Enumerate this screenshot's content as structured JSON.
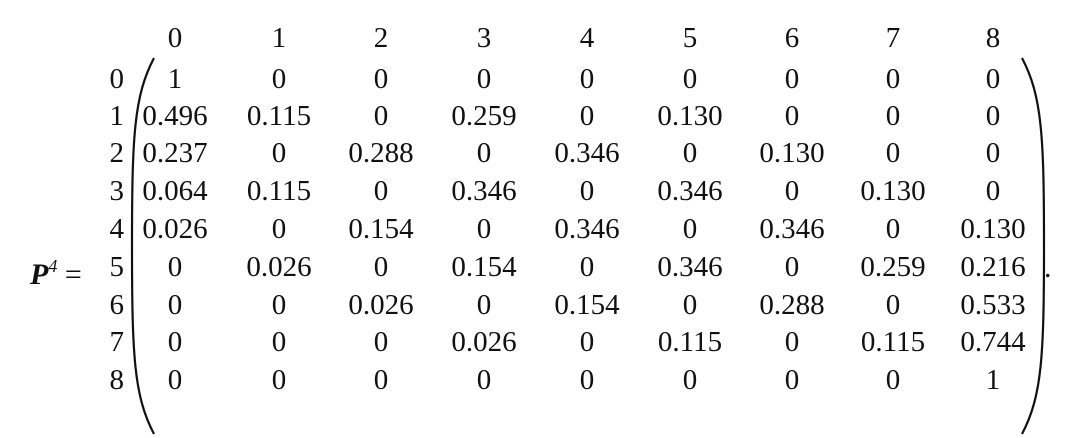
{
  "lhs": {
    "symbol": "P",
    "exponent": "4",
    "equals": " ="
  },
  "column_labels": [
    "0",
    "1",
    "2",
    "3",
    "4",
    "5",
    "6",
    "7",
    "8"
  ],
  "row_labels": [
    "0",
    "1",
    "2",
    "3",
    "4",
    "5",
    "6",
    "7",
    "8"
  ],
  "matrix": [
    [
      "1",
      "0",
      "0",
      "0",
      "0",
      "0",
      "0",
      "0",
      "0"
    ],
    [
      "0.496",
      "0.115",
      "0",
      "0.259",
      "0",
      "0.130",
      "0",
      "0",
      "0"
    ],
    [
      "0.237",
      "0",
      "0.288",
      "0",
      "0.346",
      "0",
      "0.130",
      "0",
      "0"
    ],
    [
      "0.064",
      "0.115",
      "0",
      "0.346",
      "0",
      "0.346",
      "0",
      "0.130",
      "0"
    ],
    [
      "0.026",
      "0",
      "0.154",
      "0",
      "0.346",
      "0",
      "0.346",
      "0",
      "0.130"
    ],
    [
      "0",
      "0.026",
      "0",
      "0.154",
      "0",
      "0.346",
      "0",
      "0.259",
      "0.216"
    ],
    [
      "0",
      "0",
      "0.026",
      "0",
      "0.154",
      "0",
      "0.288",
      "0",
      "0.533"
    ],
    [
      "0",
      "0",
      "0",
      "0.026",
      "0",
      "0.115",
      "0",
      "0.115",
      "0.744"
    ],
    [
      "0",
      "0",
      "0",
      "0",
      "0",
      "0",
      "0",
      "0",
      "1"
    ]
  ],
  "trailing_punctuation": "."
}
